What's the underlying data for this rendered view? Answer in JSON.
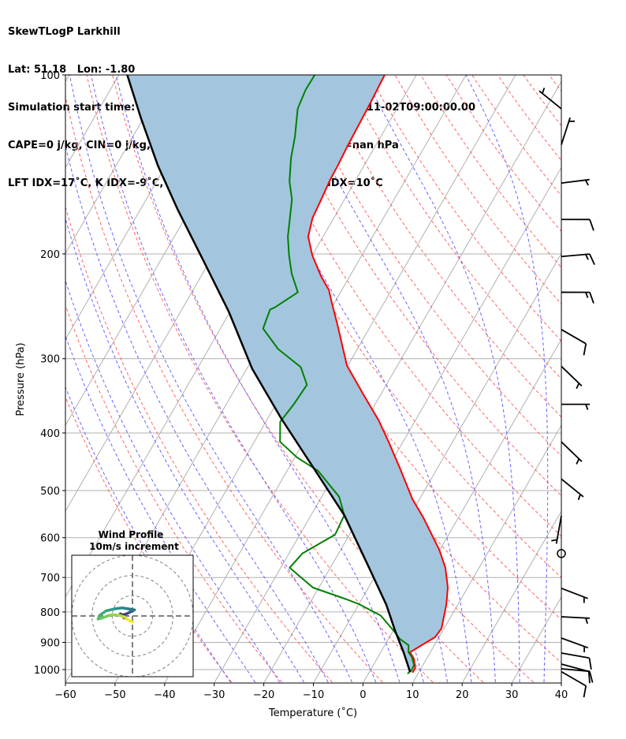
{
  "header": {
    "lines": [
      "SkewTLogP Larkhill",
      "Lat: 51.18   Lon: -1.80",
      "Simulation start time: 2024-11-02_00:00:00, Valid time: 2024-11-02T09:00:00.00",
      "CAPE=0 j/kg, CIN=0 j/kg, LCL=1005 hPa, LFC=nan hPa, EQ=nan hPa",
      "LFT IDX=17˚C, K IDX=-9˚C, TOTAL TOTS=35˚C, SHWTR_IDX=10˚C"
    ]
  },
  "chart_data": {
    "type": "line",
    "title": "SkewTLogP Larkhill",
    "xlabel": "Temperature (˚C)",
    "ylabel": "Pressure (hPa)",
    "xlim": [
      -60,
      40
    ],
    "ylim": [
      1050,
      100
    ],
    "x_ticks": [
      "−60",
      "−50",
      "−40",
      "−30",
      "−20",
      "−10",
      "0",
      "10",
      "20",
      "30",
      "40"
    ],
    "x_tick_values": [
      -60,
      -50,
      -40,
      -30,
      -20,
      -10,
      0,
      10,
      20,
      30,
      40
    ],
    "y_ticks": [
      "100",
      "200",
      "300",
      "400",
      "500",
      "600",
      "700",
      "800",
      "900",
      "1000"
    ],
    "y_tick_values": [
      100,
      200,
      300,
      400,
      500,
      600,
      700,
      800,
      900,
      1000
    ],
    "grid": true,
    "colors": {
      "temperature": "#ff0000",
      "dewpoint": "#008000",
      "parcel": "#000000",
      "shade": "#a3c6de",
      "isotherm": "#b0b0b0",
      "dry_adiabat": "#ff6666",
      "moist_adiabat": "#6666ff"
    },
    "series": [
      {
        "name": "Temperature",
        "points": [
          [
            100,
            -66.4
          ],
          [
            112,
            -66.0
          ],
          [
            132,
            -65.6
          ],
          [
            142,
            -65.3
          ],
          [
            150,
            -65.2
          ],
          [
            162,
            -64.7
          ],
          [
            174,
            -64.3
          ],
          [
            187,
            -63.0
          ],
          [
            201,
            -60.0
          ],
          [
            218,
            -55.8
          ],
          [
            230,
            -52.6
          ],
          [
            239,
            -51.0
          ],
          [
            264,
            -46.7
          ],
          [
            308,
            -40.2
          ],
          [
            344,
            -33.6
          ],
          [
            381,
            -27.4
          ],
          [
            414,
            -22.9
          ],
          [
            458,
            -17.6
          ],
          [
            517,
            -11.4
          ],
          [
            556,
            -7.0
          ],
          [
            629,
            -0.1
          ],
          [
            674,
            3.2
          ],
          [
            728,
            6.0
          ],
          [
            778,
            7.7
          ],
          [
            853,
            9.5
          ],
          [
            882,
            9.2
          ],
          [
            935,
            5.9
          ],
          [
            958,
            7.4
          ],
          [
            994,
            8.8
          ],
          [
            1012,
            8.8
          ]
        ]
      },
      {
        "name": "Dewpoint",
        "points": [
          [
            100,
            -80.5
          ],
          [
            106,
            -80.6
          ],
          [
            114,
            -80.0
          ],
          [
            127,
            -77.3
          ],
          [
            138,
            -75.6
          ],
          [
            151,
            -73.2
          ],
          [
            162,
            -70.6
          ],
          [
            187,
            -67.1
          ],
          [
            201,
            -64.7
          ],
          [
            216,
            -62.0
          ],
          [
            232,
            -58.6
          ],
          [
            246,
            -61.5
          ],
          [
            248,
            -62.2
          ],
          [
            267,
            -61.4
          ],
          [
            289,
            -56.0
          ],
          [
            310,
            -49.3
          ],
          [
            332,
            -46.0
          ],
          [
            358,
            -46.4
          ],
          [
            383,
            -47.1
          ],
          [
            414,
            -44.8
          ],
          [
            440,
            -39.5
          ],
          [
            463,
            -33.8
          ],
          [
            512,
            -26.5
          ],
          [
            550,
            -23.3
          ],
          [
            593,
            -22.9
          ],
          [
            638,
            -27.3
          ],
          [
            674,
            -28.2
          ],
          [
            728,
            -21.2
          ],
          [
            762,
            -13.0
          ],
          [
            776,
            -10.0
          ],
          [
            811,
            -4.3
          ],
          [
            865,
            0.5
          ],
          [
            888,
            2.3
          ],
          [
            910,
            4.8
          ],
          [
            935,
            5.6
          ],
          [
            952,
            6.8
          ],
          [
            982,
            8.2
          ],
          [
            1003,
            8.3
          ],
          [
            1016,
            7.9
          ]
        ]
      },
      {
        "name": "Parcel profile",
        "points": [
          [
            100,
            -118.3
          ],
          [
            118,
            -110.6
          ],
          [
            142,
            -101.6
          ],
          [
            168,
            -92.6
          ],
          [
            205,
            -81.4
          ],
          [
            250,
            -70.3
          ],
          [
            312,
            -58.9
          ],
          [
            378,
            -47.3
          ],
          [
            463,
            -34.3
          ],
          [
            550,
            -23.3
          ],
          [
            674,
            -12.2
          ],
          [
            778,
            -4.4
          ],
          [
            864,
            0.6
          ],
          [
            935,
            4.6
          ],
          [
            1009,
            8.2
          ]
        ]
      }
    ],
    "wind_barbs": [
      {
        "p": 114,
        "direction": 309,
        "speed": 5
      },
      {
        "p": 131,
        "direction": 18,
        "speed": 5
      },
      {
        "p": 152,
        "direction": 83,
        "speed": 5
      },
      {
        "p": 175,
        "direction": 90,
        "speed": 10
      },
      {
        "p": 202,
        "direction": 85,
        "speed": 15
      },
      {
        "p": 232,
        "direction": 90,
        "speed": 15
      },
      {
        "p": 268,
        "direction": 120,
        "speed": 10
      },
      {
        "p": 309,
        "direction": 134,
        "speed": 5
      },
      {
        "p": 358,
        "direction": 90,
        "speed": 5
      },
      {
        "p": 414,
        "direction": 134,
        "speed": 5
      },
      {
        "p": 478,
        "direction": 129,
        "speed": 5
      },
      {
        "p": 551,
        "direction": 190,
        "speed": 5
      },
      {
        "p": 638,
        "direction": 0,
        "speed": 0
      },
      {
        "p": 730,
        "direction": 111,
        "speed": 5
      },
      {
        "p": 815,
        "direction": 93,
        "speed": 5
      },
      {
        "p": 885,
        "direction": 110,
        "speed": 5
      },
      {
        "p": 938,
        "direction": 100,
        "speed": 10
      },
      {
        "p": 979,
        "direction": 105,
        "speed": 10
      },
      {
        "p": 997,
        "direction": 95,
        "speed": 10
      },
      {
        "p": 1008,
        "direction": 120,
        "speed": 10
      }
    ],
    "hodograph": {
      "title": "Wind Profile",
      "subtitle": "10m/s increment",
      "rings_ms": [
        10,
        20,
        30
      ],
      "range_ms": 30,
      "points": [
        [
          -4,
          -1
        ],
        [
          -5,
          0
        ],
        [
          -6,
          1
        ],
        [
          -5,
          0.5
        ],
        [
          -3,
          1
        ],
        [
          -1,
          2
        ],
        [
          0,
          2.5
        ],
        [
          1,
          3
        ],
        [
          -2,
          3.5
        ],
        [
          -5,
          4
        ],
        [
          -9,
          3.5
        ],
        [
          -13,
          2.5
        ],
        [
          -16,
          0.5
        ],
        [
          -17,
          -1.5
        ],
        [
          -15,
          -1
        ],
        [
          -11,
          0.5
        ],
        [
          -7,
          0.5
        ],
        [
          -4,
          -0.5
        ],
        [
          -2,
          -2
        ],
        [
          0,
          -3
        ]
      ]
    }
  }
}
